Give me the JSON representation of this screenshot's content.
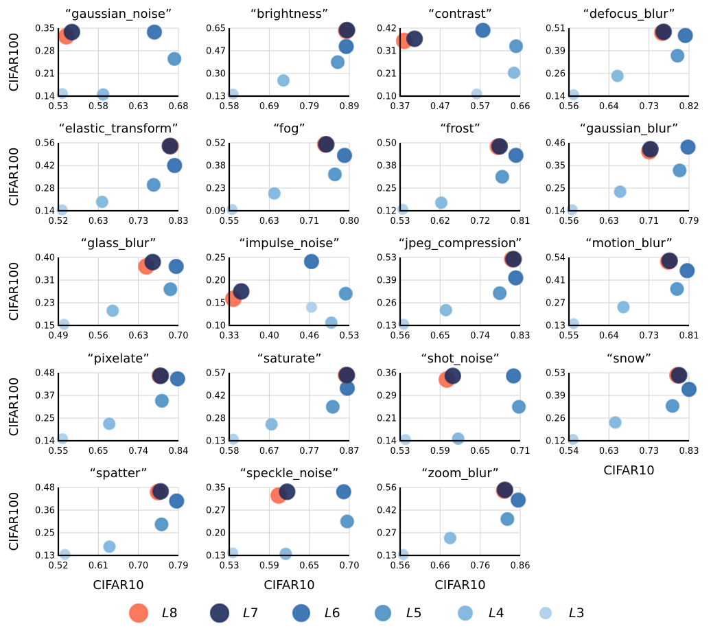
{
  "xlabel": "CIFAR10",
  "ylabel": "CIFAR100",
  "legend": [
    {
      "name": "L8",
      "letter": "L",
      "num": "8",
      "color": "#fb6a4a"
    },
    {
      "name": "L7",
      "letter": "L",
      "num": "7",
      "color": "#1f2d5c"
    },
    {
      "name": "L6",
      "letter": "L",
      "num": "6",
      "color": "#2c6aad"
    },
    {
      "name": "L5",
      "letter": "L",
      "num": "5",
      "color": "#4a8fc4"
    },
    {
      "name": "L4",
      "letter": "L",
      "num": "4",
      "color": "#7ab3db"
    },
    {
      "name": "L3",
      "letter": "L",
      "num": "3",
      "color": "#a9cde8"
    }
  ],
  "chart_data": [
    {
      "type": "scatter",
      "title": "“gaussian_noise”",
      "xlabel": "CIFAR10",
      "ylabel": "CIFAR100",
      "xlim": [
        0.53,
        0.68
      ],
      "ylim": [
        0.14,
        0.35
      ],
      "xticks": [
        "0.53",
        "0.58",
        "0.63",
        "0.68"
      ],
      "yticks": [
        "0.14",
        "0.21",
        "0.28",
        "0.35"
      ],
      "series": [
        {
          "name": "L8",
          "x": 0.54,
          "y": 0.325
        },
        {
          "name": "L7",
          "x": 0.547,
          "y": 0.338
        },
        {
          "name": "L6",
          "x": 0.65,
          "y": 0.338
        },
        {
          "name": "L5",
          "x": 0.675,
          "y": 0.255
        },
        {
          "name": "L4",
          "x": 0.586,
          "y": 0.145
        },
        {
          "name": "L3",
          "x": 0.535,
          "y": 0.148
        }
      ]
    },
    {
      "type": "scatter",
      "title": "“brightness”",
      "xlabel": "CIFAR10",
      "ylabel": "CIFAR100",
      "xlim": [
        0.58,
        0.89
      ],
      "ylim": [
        0.13,
        0.65
      ],
      "xticks": [
        "0.58",
        "0.69",
        "0.79",
        "0.89"
      ],
      "yticks": [
        "0.13",
        "0.30",
        "0.47",
        "0.65"
      ],
      "series": [
        {
          "name": "L8",
          "x": 0.882,
          "y": 0.63
        },
        {
          "name": "L7",
          "x": 0.884,
          "y": 0.635
        },
        {
          "name": "L6",
          "x": 0.882,
          "y": 0.51
        },
        {
          "name": "L5",
          "x": 0.86,
          "y": 0.39
        },
        {
          "name": "L4",
          "x": 0.72,
          "y": 0.25
        },
        {
          "name": "L3",
          "x": 0.59,
          "y": 0.145
        }
      ]
    },
    {
      "type": "scatter",
      "title": "“contrast”",
      "xlabel": "CIFAR10",
      "ylabel": "CIFAR100",
      "xlim": [
        0.37,
        0.66
      ],
      "ylim": [
        0.1,
        0.42
      ],
      "xticks": [
        "0.37",
        "0.47",
        "0.57",
        "0.66"
      ],
      "yticks": [
        "0.10",
        "0.21",
        "0.31",
        "0.42"
      ],
      "series": [
        {
          "name": "L8",
          "x": 0.38,
          "y": 0.36
        },
        {
          "name": "L7",
          "x": 0.405,
          "y": 0.37
        },
        {
          "name": "L6",
          "x": 0.57,
          "y": 0.41
        },
        {
          "name": "L5",
          "x": 0.65,
          "y": 0.335
        },
        {
          "name": "L4",
          "x": 0.645,
          "y": 0.21
        },
        {
          "name": "L3",
          "x": 0.555,
          "y": 0.11
        }
      ]
    },
    {
      "type": "scatter",
      "title": "“defocus_blur”",
      "xlabel": "CIFAR10",
      "ylabel": "CIFAR100",
      "xlim": [
        0.56,
        0.82
      ],
      "ylim": [
        0.14,
        0.51
      ],
      "xticks": [
        "0.56",
        "0.64",
        "0.73",
        "0.82"
      ],
      "yticks": [
        "0.14",
        "0.26",
        "0.39",
        "0.51"
      ],
      "series": [
        {
          "name": "L8",
          "x": 0.762,
          "y": 0.485
        },
        {
          "name": "L7",
          "x": 0.765,
          "y": 0.49
        },
        {
          "name": "L6",
          "x": 0.812,
          "y": 0.47
        },
        {
          "name": "L5",
          "x": 0.795,
          "y": 0.36
        },
        {
          "name": "L4",
          "x": 0.665,
          "y": 0.25
        },
        {
          "name": "L3",
          "x": 0.57,
          "y": 0.148
        }
      ]
    },
    {
      "type": "scatter",
      "title": "“elastic_transform”",
      "xlabel": "CIFAR10",
      "ylabel": "CIFAR100",
      "xlim": [
        0.52,
        0.83
      ],
      "ylim": [
        0.14,
        0.56
      ],
      "xticks": [
        "0.52",
        "0.63",
        "0.73",
        "0.83"
      ],
      "yticks": [
        "0.14",
        "0.28",
        "0.42",
        "0.56"
      ],
      "series": [
        {
          "name": "L8",
          "x": 0.81,
          "y": 0.54
        },
        {
          "name": "L7",
          "x": 0.808,
          "y": 0.54
        },
        {
          "name": "L6",
          "x": 0.82,
          "y": 0.42
        },
        {
          "name": "L5",
          "x": 0.766,
          "y": 0.3
        },
        {
          "name": "L4",
          "x": 0.633,
          "y": 0.195
        },
        {
          "name": "L3",
          "x": 0.53,
          "y": 0.145
        }
      ]
    },
    {
      "type": "scatter",
      "title": "“fog”",
      "xlabel": "CIFAR10",
      "ylabel": "CIFAR100",
      "xlim": [
        0.55,
        0.8
      ],
      "ylim": [
        0.09,
        0.52
      ],
      "xticks": [
        "0.55",
        "0.63",
        "0.71",
        "0.80"
      ],
      "yticks": [
        "0.09",
        "0.23",
        "0.38",
        "0.52"
      ],
      "series": [
        {
          "name": "L8",
          "x": 0.75,
          "y": 0.51
        },
        {
          "name": "L7",
          "x": 0.752,
          "y": 0.51
        },
        {
          "name": "L6",
          "x": 0.79,
          "y": 0.44
        },
        {
          "name": "L5",
          "x": 0.77,
          "y": 0.32
        },
        {
          "name": "L4",
          "x": 0.644,
          "y": 0.2
        },
        {
          "name": "L3",
          "x": 0.556,
          "y": 0.098
        }
      ]
    },
    {
      "type": "scatter",
      "title": "“frost”",
      "xlabel": "CIFAR10",
      "ylabel": "CIFAR100",
      "xlim": [
        0.53,
        0.81
      ],
      "ylim": [
        0.12,
        0.5
      ],
      "xticks": [
        "0.53",
        "0.62",
        "0.72",
        "0.81"
      ],
      "yticks": [
        "0.12",
        "0.25",
        "0.38",
        "0.50"
      ],
      "series": [
        {
          "name": "L8",
          "x": 0.758,
          "y": 0.478
        },
        {
          "name": "L7",
          "x": 0.762,
          "y": 0.48
        },
        {
          "name": "L6",
          "x": 0.8,
          "y": 0.43
        },
        {
          "name": "L5",
          "x": 0.768,
          "y": 0.31
        },
        {
          "name": "L4",
          "x": 0.626,
          "y": 0.165
        },
        {
          "name": "L3",
          "x": 0.536,
          "y": 0.128
        }
      ]
    },
    {
      "type": "scatter",
      "title": "“gaussian_blur”",
      "xlabel": "CIFAR10",
      "ylabel": "CIFAR100",
      "xlim": [
        0.56,
        0.79
      ],
      "ylim": [
        0.14,
        0.46
      ],
      "xticks": [
        "0.56",
        "0.63",
        "0.71",
        "0.79"
      ],
      "yticks": [
        "0.14",
        "0.25",
        "0.35",
        "0.46"
      ],
      "series": [
        {
          "name": "L8",
          "x": 0.714,
          "y": 0.42
        },
        {
          "name": "L7",
          "x": 0.716,
          "y": 0.43
        },
        {
          "name": "L6",
          "x": 0.788,
          "y": 0.44
        },
        {
          "name": "L5",
          "x": 0.772,
          "y": 0.33
        },
        {
          "name": "L4",
          "x": 0.658,
          "y": 0.23
        },
        {
          "name": "L3",
          "x": 0.566,
          "y": 0.145
        }
      ]
    },
    {
      "type": "scatter",
      "title": "“glass_blur”",
      "xlabel": "CIFAR10",
      "ylabel": "CIFAR100",
      "xlim": [
        0.49,
        0.7
      ],
      "ylim": [
        0.15,
        0.4
      ],
      "xticks": [
        "0.49",
        "0.56",
        "0.63",
        "0.70"
      ],
      "yticks": [
        "0.15",
        "0.23",
        "0.31",
        "0.40"
      ],
      "series": [
        {
          "name": "L8",
          "x": 0.644,
          "y": 0.367
        },
        {
          "name": "L7",
          "x": 0.655,
          "y": 0.383
        },
        {
          "name": "L6",
          "x": 0.696,
          "y": 0.367
        },
        {
          "name": "L5",
          "x": 0.686,
          "y": 0.283
        },
        {
          "name": "L4",
          "x": 0.585,
          "y": 0.204
        },
        {
          "name": "L3",
          "x": 0.5,
          "y": 0.154
        }
      ]
    },
    {
      "type": "scatter",
      "title": "“impulse_noise”",
      "xlabel": "CIFAR10",
      "ylabel": "CIFAR100",
      "xlim": [
        0.33,
        0.53
      ],
      "ylim": [
        0.1,
        0.25
      ],
      "xticks": [
        "0.33",
        "0.40",
        "0.46",
        "0.53"
      ],
      "yticks": [
        "0.10",
        "0.15",
        "0.20",
        "0.25"
      ],
      "series": [
        {
          "name": "L8",
          "x": 0.337,
          "y": 0.159
        },
        {
          "name": "L7",
          "x": 0.35,
          "y": 0.175
        },
        {
          "name": "L6",
          "x": 0.467,
          "y": 0.241
        },
        {
          "name": "L5",
          "x": 0.524,
          "y": 0.17
        },
        {
          "name": "L4",
          "x": 0.5,
          "y": 0.106
        },
        {
          "name": "L3",
          "x": 0.467,
          "y": 0.14
        }
      ]
    },
    {
      "type": "scatter",
      "title": "“jpeg_compression”",
      "xlabel": "CIFAR10",
      "ylabel": "CIFAR100",
      "xlim": [
        0.56,
        0.83
      ],
      "ylim": [
        0.13,
        0.53
      ],
      "xticks": [
        "0.56",
        "0.65",
        "0.74",
        "0.83"
      ],
      "yticks": [
        "0.13",
        "0.26",
        "0.39",
        "0.53"
      ],
      "series": [
        {
          "name": "L8",
          "x": 0.812,
          "y": 0.52
        },
        {
          "name": "L7",
          "x": 0.815,
          "y": 0.52
        },
        {
          "name": "L6",
          "x": 0.82,
          "y": 0.41
        },
        {
          "name": "L5",
          "x": 0.784,
          "y": 0.32
        },
        {
          "name": "L4",
          "x": 0.663,
          "y": 0.22
        },
        {
          "name": "L3",
          "x": 0.568,
          "y": 0.137
        }
      ]
    },
    {
      "type": "scatter",
      "title": "“motion_blur”",
      "xlabel": "CIFAR10",
      "ylabel": "CIFAR100",
      "xlim": [
        0.55,
        0.81
      ],
      "ylim": [
        0.13,
        0.54
      ],
      "xticks": [
        "0.55",
        "0.64",
        "0.73",
        "0.81"
      ],
      "yticks": [
        "0.13",
        "0.27",
        "0.41",
        "0.54"
      ],
      "series": [
        {
          "name": "L8",
          "x": 0.765,
          "y": 0.515
        },
        {
          "name": "L7",
          "x": 0.768,
          "y": 0.52
        },
        {
          "name": "L6",
          "x": 0.806,
          "y": 0.46
        },
        {
          "name": "L5",
          "x": 0.784,
          "y": 0.35
        },
        {
          "name": "L4",
          "x": 0.668,
          "y": 0.24
        },
        {
          "name": "L3",
          "x": 0.56,
          "y": 0.14
        }
      ]
    },
    {
      "type": "scatter",
      "title": "“pixelate”",
      "xlabel": "CIFAR10",
      "ylabel": "CIFAR100",
      "xlim": [
        0.55,
        0.84
      ],
      "ylim": [
        0.14,
        0.48
      ],
      "xticks": [
        "0.55",
        "0.65",
        "0.74",
        "0.84"
      ],
      "yticks": [
        "0.14",
        "0.25",
        "0.37",
        "0.48"
      ],
      "series": [
        {
          "name": "L8",
          "x": 0.795,
          "y": 0.465
        },
        {
          "name": "L7",
          "x": 0.797,
          "y": 0.465
        },
        {
          "name": "L6",
          "x": 0.838,
          "y": 0.45
        },
        {
          "name": "L5",
          "x": 0.8,
          "y": 0.34
        },
        {
          "name": "L4",
          "x": 0.673,
          "y": 0.225
        },
        {
          "name": "L3",
          "x": 0.56,
          "y": 0.15
        }
      ]
    },
    {
      "type": "scatter",
      "title": "“saturate”",
      "xlabel": "CIFAR10",
      "ylabel": "CIFAR100",
      "xlim": [
        0.58,
        0.87
      ],
      "ylim": [
        0.13,
        0.57
      ],
      "xticks": [
        "0.58",
        "0.67",
        "0.77",
        "0.87"
      ],
      "yticks": [
        "0.13",
        "0.28",
        "0.42",
        "0.57"
      ],
      "series": [
        {
          "name": "L8",
          "x": 0.862,
          "y": 0.555
        },
        {
          "name": "L7",
          "x": 0.864,
          "y": 0.555
        },
        {
          "name": "L6",
          "x": 0.865,
          "y": 0.47
        },
        {
          "name": "L5",
          "x": 0.83,
          "y": 0.35
        },
        {
          "name": "L4",
          "x": 0.682,
          "y": 0.236
        },
        {
          "name": "L3",
          "x": 0.59,
          "y": 0.14
        }
      ]
    },
    {
      "type": "scatter",
      "title": "“shot_noise”",
      "xlabel": "CIFAR10",
      "ylabel": "CIFAR100",
      "xlim": [
        0.53,
        0.71
      ],
      "ylim": [
        0.14,
        0.36
      ],
      "xticks": [
        "0.53",
        "0.59",
        "0.65",
        "0.71"
      ],
      "yticks": [
        "0.14",
        "0.21",
        "0.29",
        "0.36"
      ],
      "series": [
        {
          "name": "L8",
          "x": 0.6,
          "y": 0.338
        },
        {
          "name": "L7",
          "x": 0.609,
          "y": 0.35
        },
        {
          "name": "L6",
          "x": 0.7,
          "y": 0.35
        },
        {
          "name": "L5",
          "x": 0.708,
          "y": 0.25
        },
        {
          "name": "L4",
          "x": 0.617,
          "y": 0.147
        },
        {
          "name": "L3",
          "x": 0.538,
          "y": 0.144
        }
      ]
    },
    {
      "type": "scatter",
      "title": "“snow”",
      "xlabel": "CIFAR10",
      "ylabel": "CIFAR100",
      "xlim": [
        0.54,
        0.83
      ],
      "ylim": [
        0.12,
        0.53
      ],
      "xticks": [
        "0.54",
        "0.63",
        "0.73",
        "0.83"
      ],
      "yticks": [
        "0.12",
        "0.26",
        "0.39",
        "0.53"
      ],
      "series": [
        {
          "name": "L8",
          "x": 0.802,
          "y": 0.515
        },
        {
          "name": "L7",
          "x": 0.806,
          "y": 0.515
        },
        {
          "name": "L6",
          "x": 0.83,
          "y": 0.43
        },
        {
          "name": "L5",
          "x": 0.79,
          "y": 0.33
        },
        {
          "name": "L4",
          "x": 0.652,
          "y": 0.23
        },
        {
          "name": "L3",
          "x": 0.55,
          "y": 0.128
        }
      ]
    },
    {
      "type": "scatter",
      "title": "“spatter”",
      "xlabel": "CIFAR10",
      "ylabel": "CIFAR100",
      "xlim": [
        0.52,
        0.79
      ],
      "ylim": [
        0.13,
        0.48
      ],
      "xticks": [
        "0.52",
        "0.61",
        "0.70",
        "0.79"
      ],
      "yticks": [
        "0.13",
        "0.25",
        "0.36",
        "0.48"
      ],
      "series": [
        {
          "name": "L8",
          "x": 0.744,
          "y": 0.456
        },
        {
          "name": "L7",
          "x": 0.75,
          "y": 0.46
        },
        {
          "name": "L6",
          "x": 0.786,
          "y": 0.41
        },
        {
          "name": "L5",
          "x": 0.752,
          "y": 0.29
        },
        {
          "name": "L4",
          "x": 0.635,
          "y": 0.175
        },
        {
          "name": "L3",
          "x": 0.535,
          "y": 0.135
        }
      ]
    },
    {
      "type": "scatter",
      "title": "“speckle_noise”",
      "xlabel": "CIFAR10",
      "ylabel": "CIFAR100",
      "xlim": [
        0.53,
        0.7
      ],
      "ylim": [
        0.13,
        0.35
      ],
      "xticks": [
        "0.53",
        "0.59",
        "0.65",
        "0.70"
      ],
      "yticks": [
        "0.13",
        "0.20",
        "0.27",
        "0.35"
      ],
      "series": [
        {
          "name": "L8",
          "x": 0.6,
          "y": 0.324
        },
        {
          "name": "L7",
          "x": 0.612,
          "y": 0.336
        },
        {
          "name": "L6",
          "x": 0.692,
          "y": 0.336
        },
        {
          "name": "L5",
          "x": 0.697,
          "y": 0.24
        },
        {
          "name": "L4",
          "x": 0.61,
          "y": 0.135
        },
        {
          "name": "L3",
          "x": 0.535,
          "y": 0.138
        }
      ]
    },
    {
      "type": "scatter",
      "title": "“zoom_blur”",
      "xlabel": "CIFAR10",
      "ylabel": "CIFAR100",
      "xlim": [
        0.56,
        0.86
      ],
      "ylim": [
        0.13,
        0.56
      ],
      "xticks": [
        "0.56",
        "0.66",
        "0.76",
        "0.86"
      ],
      "yticks": [
        "0.13",
        "0.27",
        "0.42",
        "0.56"
      ],
      "series": [
        {
          "name": "L8",
          "x": 0.82,
          "y": 0.54
        },
        {
          "name": "L7",
          "x": 0.822,
          "y": 0.545
        },
        {
          "name": "L6",
          "x": 0.855,
          "y": 0.48
        },
        {
          "name": "L5",
          "x": 0.828,
          "y": 0.36
        },
        {
          "name": "L4",
          "x": 0.685,
          "y": 0.24
        },
        {
          "name": "L3",
          "x": 0.568,
          "y": 0.135
        }
      ]
    }
  ]
}
